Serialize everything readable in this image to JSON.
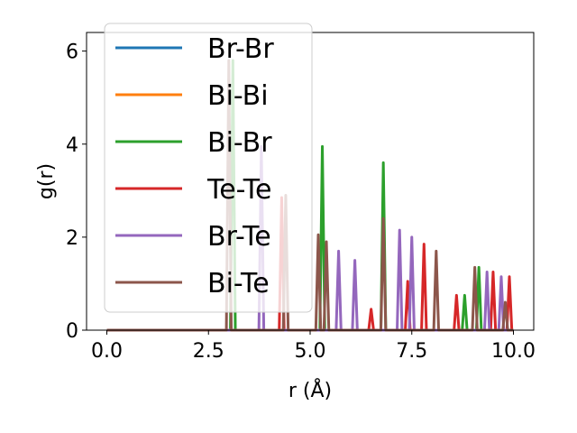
{
  "chart_data": {
    "type": "line",
    "xlabel": "r (Å)",
    "ylabel": "g(r)",
    "xlim": [
      0,
      10
    ],
    "ylim": [
      0,
      6.4
    ],
    "xticks": [
      "0.0",
      "2.5",
      "5.0",
      "7.5",
      "10.0"
    ],
    "xtick_values": [
      0,
      2.5,
      5,
      7.5,
      10
    ],
    "yticks": [
      "0",
      "2",
      "4",
      "6"
    ],
    "ytick_values": [
      0,
      2,
      4,
      6
    ],
    "grid": false,
    "legend_position": "top-left",
    "series": [
      {
        "name": "Br-Br",
        "color": "#1f77b4",
        "peaks": []
      },
      {
        "name": "Bi-Bi",
        "color": "#ff7f0e",
        "peaks": []
      },
      {
        "name": "Bi-Br",
        "color": "#2ca02c",
        "peaks": [
          [
            3.1,
            5.8
          ],
          [
            5.3,
            3.95
          ],
          [
            6.8,
            3.6
          ],
          [
            8.8,
            0.75
          ],
          [
            9.15,
            1.35
          ]
        ]
      },
      {
        "name": "Te-Te",
        "color": "#d62728",
        "peaks": [
          [
            4.3,
            2.85
          ],
          [
            6.5,
            0.45
          ],
          [
            7.4,
            1.05
          ],
          [
            7.8,
            1.85
          ],
          [
            8.6,
            0.75
          ],
          [
            9.5,
            1.25
          ],
          [
            9.9,
            1.15
          ]
        ]
      },
      {
        "name": "Br-Te",
        "color": "#9467bd",
        "peaks": [
          [
            3.8,
            3.95
          ],
          [
            5.7,
            1.7
          ],
          [
            6.1,
            1.5
          ],
          [
            7.2,
            2.15
          ],
          [
            7.5,
            2.0
          ],
          [
            9.35,
            1.25
          ],
          [
            9.7,
            1.15
          ]
        ]
      },
      {
        "name": "Bi-Te",
        "color": "#8c564b",
        "peaks": [
          [
            3.0,
            5.8
          ],
          [
            4.4,
            2.9
          ],
          [
            5.2,
            2.05
          ],
          [
            5.4,
            1.9
          ],
          [
            6.8,
            2.4
          ],
          [
            8.1,
            1.7
          ],
          [
            9.05,
            1.35
          ],
          [
            9.8,
            0.6
          ]
        ]
      }
    ]
  }
}
